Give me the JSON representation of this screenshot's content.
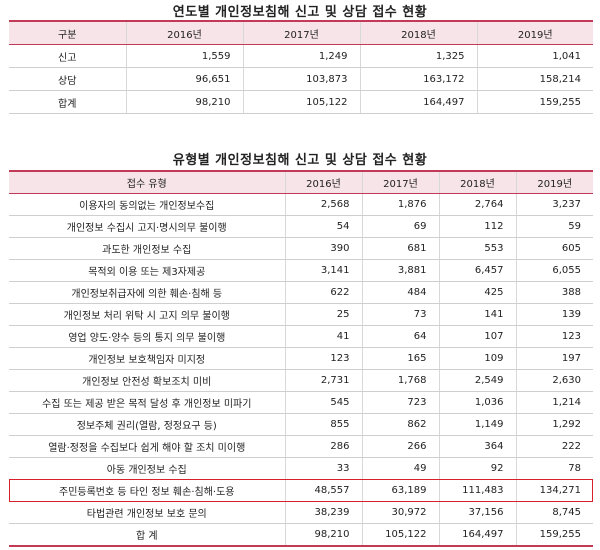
{
  "table1": {
    "title": "연도별 개인정보침해 신고 및 상담 접수 현황",
    "headers": [
      "구분",
      "2016년",
      "2017년",
      "2018년",
      "2019년"
    ],
    "rows": [
      {
        "label": "신고",
        "values": [
          "1,559",
          "1,249",
          "1,325",
          "1,041"
        ]
      },
      {
        "label": "상담",
        "values": [
          "96,651",
          "103,873",
          "163,172",
          "158,214"
        ]
      },
      {
        "label": "합계",
        "values": [
          "98,210",
          "105,122",
          "164,497",
          "159,255"
        ]
      }
    ]
  },
  "table2": {
    "title": "유형별 개인정보침해 신고 및 상담 접수 현황",
    "headers": [
      "접수 유형",
      "2016년",
      "2017년",
      "2018년",
      "2019년"
    ],
    "rows": [
      {
        "label": "이용자의 동의없는 개인정보수집",
        "values": [
          "2,568",
          "1,876",
          "2,764",
          "3,237"
        ]
      },
      {
        "label": "개인정보 수집시 고지·명시의무 불이행",
        "values": [
          "54",
          "69",
          "112",
          "59"
        ]
      },
      {
        "label": "과도한 개인정보 수집",
        "values": [
          "390",
          "681",
          "553",
          "605"
        ]
      },
      {
        "label": "목적외 이용 또는 제3자제공",
        "values": [
          "3,141",
          "3,881",
          "6,457",
          "6,055"
        ]
      },
      {
        "label": "개인정보취급자에 의한 훼손·침해 등",
        "values": [
          "622",
          "484",
          "425",
          "388"
        ]
      },
      {
        "label": "개인정보 처리 위탁 시 고지 의무 불이행",
        "values": [
          "25",
          "73",
          "141",
          "139"
        ]
      },
      {
        "label": "영업 양도·양수 등의 통지 의무 불이행",
        "values": [
          "41",
          "64",
          "107",
          "123"
        ]
      },
      {
        "label": "개인정보 보호책임자 미지정",
        "values": [
          "123",
          "165",
          "109",
          "197"
        ]
      },
      {
        "label": "개인정보 안전성 확보조치 미비",
        "values": [
          "2,731",
          "1,768",
          "2,549",
          "2,630"
        ]
      },
      {
        "label": "수집 또는 제공 받은 목적 달성 후 개인정보 미파기",
        "values": [
          "545",
          "723",
          "1,036",
          "1,214"
        ]
      },
      {
        "label": "정보주체 권리(열람, 정정요구 등)",
        "values": [
          "855",
          "862",
          "1,149",
          "1,292"
        ]
      },
      {
        "label": "열람·정정을 수집보다 쉽게 해야 할 조치 미이행",
        "values": [
          "286",
          "266",
          "364",
          "222"
        ]
      },
      {
        "label": "아동 개인정보 수집",
        "values": [
          "33",
          "49",
          "92",
          "78"
        ]
      },
      {
        "label": "주민등록번호 등 타인 정보 훼손·침해·도용",
        "values": [
          "48,557",
          "63,189",
          "111,483",
          "134,271"
        ],
        "highlight": true
      },
      {
        "label": "타법관련 개인정보 보호 문의",
        "values": [
          "38,239",
          "30,972",
          "37,156",
          "8,745"
        ]
      },
      {
        "label": "합   계",
        "values": [
          "98,210",
          "105,122",
          "164,497",
          "159,255"
        ],
        "total": true
      }
    ],
    "highlight_color": "#d6202c"
  }
}
